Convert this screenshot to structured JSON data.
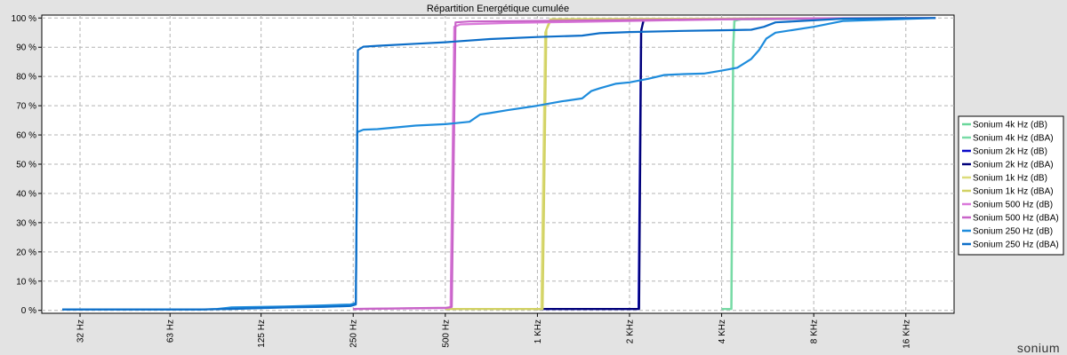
{
  "chart_data": {
    "type": "line",
    "title": "Répartition Energétique cumulée",
    "xlabel": "",
    "ylabel": "",
    "x_scale": "log2",
    "x_ticks": [
      {
        "value": 32,
        "label": "32 Hz"
      },
      {
        "value": 63,
        "label": "63 Hz"
      },
      {
        "value": 125,
        "label": "125 Hz"
      },
      {
        "value": 250,
        "label": "250 Hz"
      },
      {
        "value": 500,
        "label": "500 Hz"
      },
      {
        "value": 1000,
        "label": "1 KHz"
      },
      {
        "value": 2000,
        "label": "2 KHz"
      },
      {
        "value": 4000,
        "label": "4 KHz"
      },
      {
        "value": 8000,
        "label": "8 KHz"
      },
      {
        "value": 16000,
        "label": "16 KHz"
      }
    ],
    "y_ticks": [
      {
        "value": 0,
        "label": "0 %"
      },
      {
        "value": 10,
        "label": "10 %"
      },
      {
        "value": 20,
        "label": "20 %"
      },
      {
        "value": 30,
        "label": "30 %"
      },
      {
        "value": 40,
        "label": "40 %"
      },
      {
        "value": 50,
        "label": "50 %"
      },
      {
        "value": 60,
        "label": "60 %"
      },
      {
        "value": 70,
        "label": "70 %"
      },
      {
        "value": 80,
        "label": "80 %"
      },
      {
        "value": 90,
        "label": "90 %"
      },
      {
        "value": 100,
        "label": "100 %"
      }
    ],
    "xlim": [
      24,
      23000
    ],
    "ylim": [
      -1,
      101
    ],
    "grid": true,
    "legend_position": "right",
    "series": [
      {
        "name": "Sonium 4k Hz (dB)",
        "color": "#6ad79b",
        "points": [
          [
            4000,
            0.5
          ],
          [
            4300,
            0.5
          ],
          [
            4360,
            90
          ],
          [
            4400,
            99
          ],
          [
            4600,
            99.5
          ],
          [
            20000,
            100
          ]
        ]
      },
      {
        "name": "Sonium 4k Hz (dBA)",
        "color": "#78dba6",
        "points": [
          [
            4000,
            0.5
          ],
          [
            4310,
            0.5
          ],
          [
            4370,
            90
          ],
          [
            4410,
            99.2
          ],
          [
            4700,
            99.6
          ],
          [
            20000,
            100
          ]
        ]
      },
      {
        "name": "Sonium 2k Hz (dB)",
        "color": "#0a0ac8",
        "points": [
          [
            1000,
            0.5
          ],
          [
            2140,
            0.5
          ],
          [
            2180,
            95
          ],
          [
            2220,
            99.4
          ],
          [
            2600,
            99.6
          ],
          [
            20000,
            100
          ]
        ]
      },
      {
        "name": "Sonium 2k Hz (dBA)",
        "color": "#00007a",
        "points": [
          [
            1000,
            0.5
          ],
          [
            2150,
            0.5
          ],
          [
            2185,
            96
          ],
          [
            2230,
            99.5
          ],
          [
            2700,
            99.7
          ],
          [
            20000,
            100
          ]
        ]
      },
      {
        "name": "Sonium 1k Hz (dB)",
        "color": "#dcdc7a",
        "points": [
          [
            500,
            0.5
          ],
          [
            1030,
            0.5
          ],
          [
            1060,
            95
          ],
          [
            1100,
            99.5
          ],
          [
            1500,
            99.6
          ],
          [
            20000,
            100
          ]
        ]
      },
      {
        "name": "Sonium 1k Hz (dBA)",
        "color": "#d2d264",
        "points": [
          [
            500,
            0.5
          ],
          [
            1040,
            0.5
          ],
          [
            1070,
            96
          ],
          [
            1110,
            99.6
          ],
          [
            1600,
            99.7
          ],
          [
            20000,
            100
          ]
        ]
      },
      {
        "name": "Sonium 500 Hz (dB)",
        "color": "#da78da",
        "points": [
          [
            250,
            0.5
          ],
          [
            500,
            0.8
          ],
          [
            520,
            1
          ],
          [
            535,
            97
          ],
          [
            560,
            97.8
          ],
          [
            800,
            98.3
          ],
          [
            1200,
            98.6
          ],
          [
            2000,
            99
          ],
          [
            4000,
            99.5
          ],
          [
            8000,
            99.8
          ],
          [
            20000,
            100
          ]
        ]
      },
      {
        "name": "Sonium 500 Hz (dBA)",
        "color": "#c864c8",
        "points": [
          [
            250,
            0.5
          ],
          [
            505,
            0.9
          ],
          [
            525,
            1.2
          ],
          [
            540,
            98.5
          ],
          [
            600,
            98.8
          ],
          [
            1000,
            99
          ],
          [
            2000,
            99.3
          ],
          [
            4000,
            99.6
          ],
          [
            8000,
            99.9
          ],
          [
            20000,
            100
          ]
        ]
      },
      {
        "name": "Sonium 250 Hz (dB)",
        "color": "#1e8cdc",
        "points": [
          [
            28,
            0.3
          ],
          [
            60,
            0.3
          ],
          [
            80,
            0.3
          ],
          [
            90,
            0.5
          ],
          [
            100,
            1
          ],
          [
            150,
            1.3
          ],
          [
            200,
            1.7
          ],
          [
            245,
            2
          ],
          [
            255,
            2.5
          ],
          [
            258,
            61
          ],
          [
            270,
            61.8
          ],
          [
            300,
            62
          ],
          [
            400,
            63.2
          ],
          [
            500,
            63.7
          ],
          [
            600,
            64.5
          ],
          [
            650,
            67
          ],
          [
            700,
            67.5
          ],
          [
            800,
            68.5
          ],
          [
            1000,
            70
          ],
          [
            1200,
            71.5
          ],
          [
            1400,
            72.5
          ],
          [
            1500,
            75
          ],
          [
            1600,
            76
          ],
          [
            1800,
            77.5
          ],
          [
            2000,
            78
          ],
          [
            2300,
            79.2
          ],
          [
            2600,
            80.5
          ],
          [
            3000,
            80.8
          ],
          [
            3500,
            81
          ],
          [
            4000,
            82
          ],
          [
            4500,
            83
          ],
          [
            5000,
            86
          ],
          [
            5300,
            89
          ],
          [
            5600,
            93
          ],
          [
            6000,
            95
          ],
          [
            8000,
            97
          ],
          [
            10000,
            99
          ],
          [
            20000,
            100
          ]
        ]
      },
      {
        "name": "Sonium 250 Hz (dBA)",
        "color": "#0d6ec8",
        "points": [
          [
            28,
            0.3
          ],
          [
            80,
            0.3
          ],
          [
            100,
            0.5
          ],
          [
            150,
            1
          ],
          [
            200,
            1.2
          ],
          [
            245,
            1.5
          ],
          [
            255,
            2
          ],
          [
            259,
            89
          ],
          [
            270,
            90.2
          ],
          [
            300,
            90.5
          ],
          [
            400,
            91.2
          ],
          [
            500,
            91.7
          ],
          [
            700,
            92.8
          ],
          [
            1000,
            93.5
          ],
          [
            1400,
            94
          ],
          [
            1600,
            94.8
          ],
          [
            2000,
            95.2
          ],
          [
            3000,
            95.6
          ],
          [
            4000,
            95.8
          ],
          [
            5000,
            96
          ],
          [
            5500,
            97
          ],
          [
            6000,
            98.5
          ],
          [
            8000,
            99.2
          ],
          [
            10000,
            99.8
          ],
          [
            20000,
            100
          ]
        ]
      }
    ]
  },
  "logo_text": "sonium"
}
